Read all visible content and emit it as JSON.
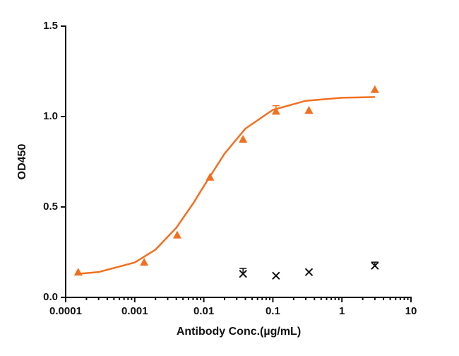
{
  "chart_data": {
    "type": "scatter",
    "x_label": "Antibody Conc.(µg/mL)",
    "y_label": "OD450",
    "xlog": true,
    "xlim": [
      0.0001,
      10
    ],
    "xticks": [
      0.0001,
      0.001,
      0.01,
      0.1,
      1,
      10
    ],
    "ylim": [
      0,
      1.5
    ],
    "yticks": [
      {
        "value": 0,
        "label": "0.0"
      },
      {
        "value": 0.5,
        "label": "0.5"
      },
      {
        "value": 1,
        "label": "1.0"
      },
      {
        "value": 1.5,
        "label": "1.5"
      }
    ],
    "series": [
      {
        "type": "line",
        "color": "#f07020",
        "x": [
          0.00015,
          0.0003,
          0.001,
          0.002,
          0.004,
          0.007,
          0.01,
          0.02,
          0.04,
          0.1,
          0.3,
          1,
          3
        ],
        "values": [
          0.13,
          0.14,
          0.193,
          0.264,
          0.385,
          0.519,
          0.615,
          0.795,
          0.933,
          1.037,
          1.087,
          1.104,
          1.108
        ]
      },
      {
        "type": "scatter",
        "marker": "triangle",
        "color": "#f07020",
        "x": [
          0.000152,
          0.00137,
          0.00412,
          0.0123,
          0.037,
          0.111,
          0.333,
          3
        ],
        "values": [
          0.14,
          0.195,
          0.345,
          0.665,
          0.875,
          1.03,
          1.035,
          1.15
        ],
        "errors": [
          null,
          null,
          null,
          null,
          null,
          0.03,
          null,
          null
        ]
      },
      {
        "type": "scatter",
        "marker": "cross",
        "color": "#111111",
        "x": [
          0.037,
          0.111,
          0.333,
          3
        ],
        "values": [
          0.13,
          0.12,
          0.14,
          0.175
        ],
        "errors": [
          0.03,
          null,
          null,
          0.02
        ]
      }
    ]
  }
}
